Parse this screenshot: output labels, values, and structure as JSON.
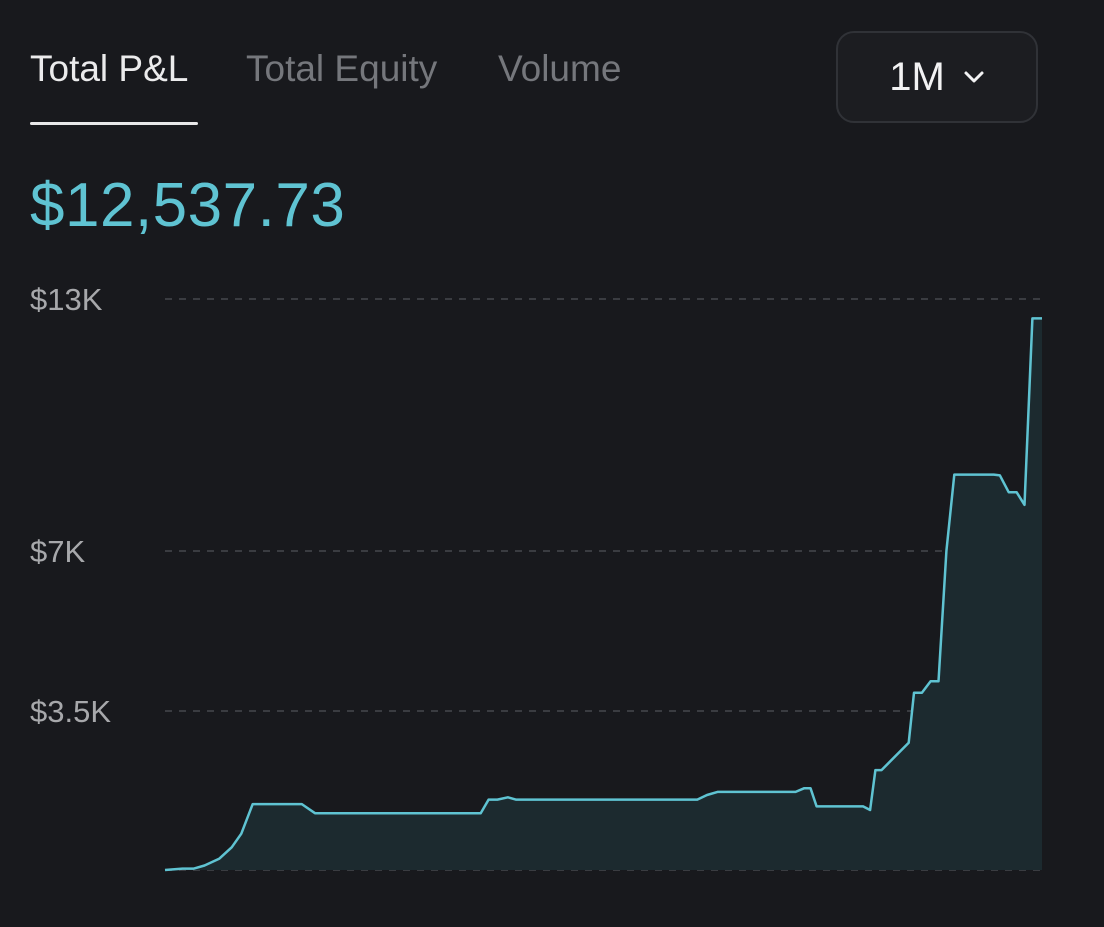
{
  "tabs": [
    {
      "label": "Total P&L",
      "active": true
    },
    {
      "label": "Total Equity",
      "active": false
    },
    {
      "label": "Volume",
      "active": false
    }
  ],
  "range": {
    "selected": "1M",
    "icon": "chevron-down-icon"
  },
  "value": "$12,537.73",
  "colors": {
    "accent": "#5fc3d2",
    "fill": "#1c2a2f",
    "grid": "#3a3c41",
    "background": "#18191d"
  },
  "chart_data": {
    "type": "area",
    "title": "",
    "xlabel": "",
    "ylabel": "",
    "ylim": [
      0,
      13000
    ],
    "grid": true,
    "y_ticks": [
      {
        "value": 13000,
        "label": "$13K"
      },
      {
        "value": 7000,
        "label": "$7K"
      },
      {
        "value": 3500,
        "label": "$3.5K"
      },
      {
        "value": 0,
        "label": ""
      }
    ],
    "series": [
      {
        "x": [
          0,
          2.0,
          3.3,
          4.5,
          6.2,
          7.6,
          8.7,
          10.0,
          15.6,
          17.1,
          36.0,
          36.9,
          37.9,
          39.1,
          40.0,
          60.7,
          61.8,
          63.0,
          71.9,
          72.9,
          73.6,
          74.3,
          79.6,
          80.4,
          81.0,
          81.7,
          84.8,
          85.4,
          86.3,
          87.3,
          88.2,
          89.1,
          90.0,
          91.1,
          92.0,
          94.5,
          95.2,
          96.2,
          97.1,
          98.0,
          98.9,
          100.0
        ],
        "y": [
          0,
          30,
          30,
          100,
          250,
          500,
          800,
          1450,
          1450,
          1250,
          1250,
          1550,
          1550,
          1600,
          1550,
          1550,
          1650,
          1720,
          1720,
          1800,
          1800,
          1400,
          1400,
          1320,
          2200,
          2200,
          2800,
          3900,
          3900,
          4150,
          4150,
          7000,
          8820,
          8820,
          8820,
          8820,
          8800,
          8400,
          8400,
          8100,
          12537.73,
          12537.73
        ]
      }
    ]
  }
}
